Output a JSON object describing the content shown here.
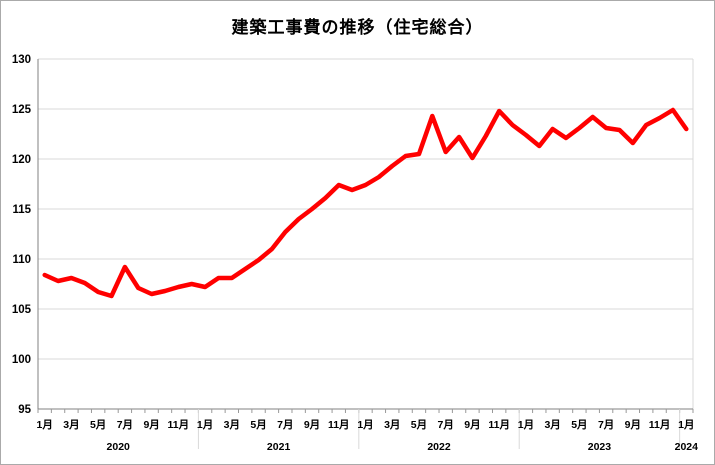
{
  "window": {
    "background": "#ffffff",
    "border_color": "#aaaaaa"
  },
  "chart_data": {
    "type": "line",
    "title": "建築工事費の推移（住宅総合）",
    "x_start": "2020年1月",
    "x_end": "2024年1月",
    "x_interval": "monthly",
    "x_tick_labels": [
      "1月",
      "3月",
      "5月",
      "7月",
      "9月",
      "11月",
      "1月",
      "3月",
      "5月",
      "7月",
      "9月",
      "11月",
      "1月",
      "3月",
      "5月",
      "7月",
      "9月",
      "11月",
      "1月",
      "3月",
      "5月",
      "7月",
      "9月",
      "11月",
      "1月"
    ],
    "x_label_every": 2,
    "year_labels": [
      "2020",
      "2021",
      "2022",
      "2023",
      "2024"
    ],
    "y_ticks": [
      95,
      100,
      105,
      110,
      115,
      120,
      125,
      130
    ],
    "ylim": [
      95,
      130
    ],
    "grid": true,
    "legend_position": "none",
    "series": [
      {
        "name": "住宅総合",
        "color": "#ff0000",
        "values": [
          108.4,
          107.8,
          108.1,
          107.6,
          106.7,
          106.3,
          109.2,
          107.1,
          106.5,
          106.8,
          107.2,
          107.5,
          107.2,
          108.1,
          108.1,
          109.0,
          109.9,
          111.0,
          112.7,
          114.0,
          115.0,
          116.1,
          117.4,
          116.9,
          117.4,
          118.2,
          119.3,
          120.3,
          120.5,
          124.3,
          120.7,
          122.2,
          120.1,
          122.3,
          124.8,
          123.4,
          122.4,
          121.3,
          123.0,
          122.1,
          123.1,
          124.2,
          123.1,
          122.9,
          121.6,
          123.4,
          124.1,
          124.9,
          123.0
        ]
      }
    ],
    "colors": {
      "line": "#ff0000",
      "gridline": "#d9d9d9",
      "axis": "#808080",
      "tick": "#999999",
      "label": "#000000"
    }
  }
}
